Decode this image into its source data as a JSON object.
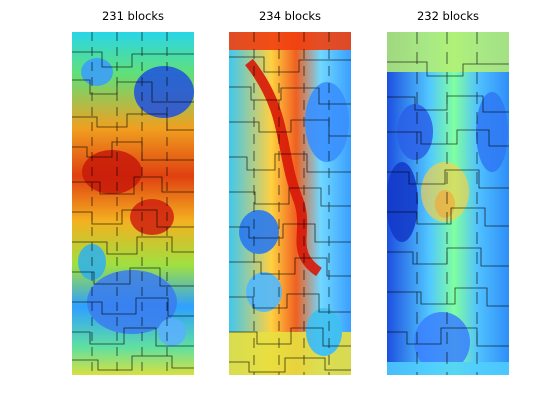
{
  "figure": {
    "panels": [
      {
        "title": "231 blocks",
        "colormap": "jet"
      },
      {
        "title": "234 blocks",
        "colormap": "jet"
      },
      {
        "title": "232 blocks",
        "colormap": "jet"
      }
    ],
    "block_boundary_color": "#000000",
    "background": "#ffffff"
  }
}
